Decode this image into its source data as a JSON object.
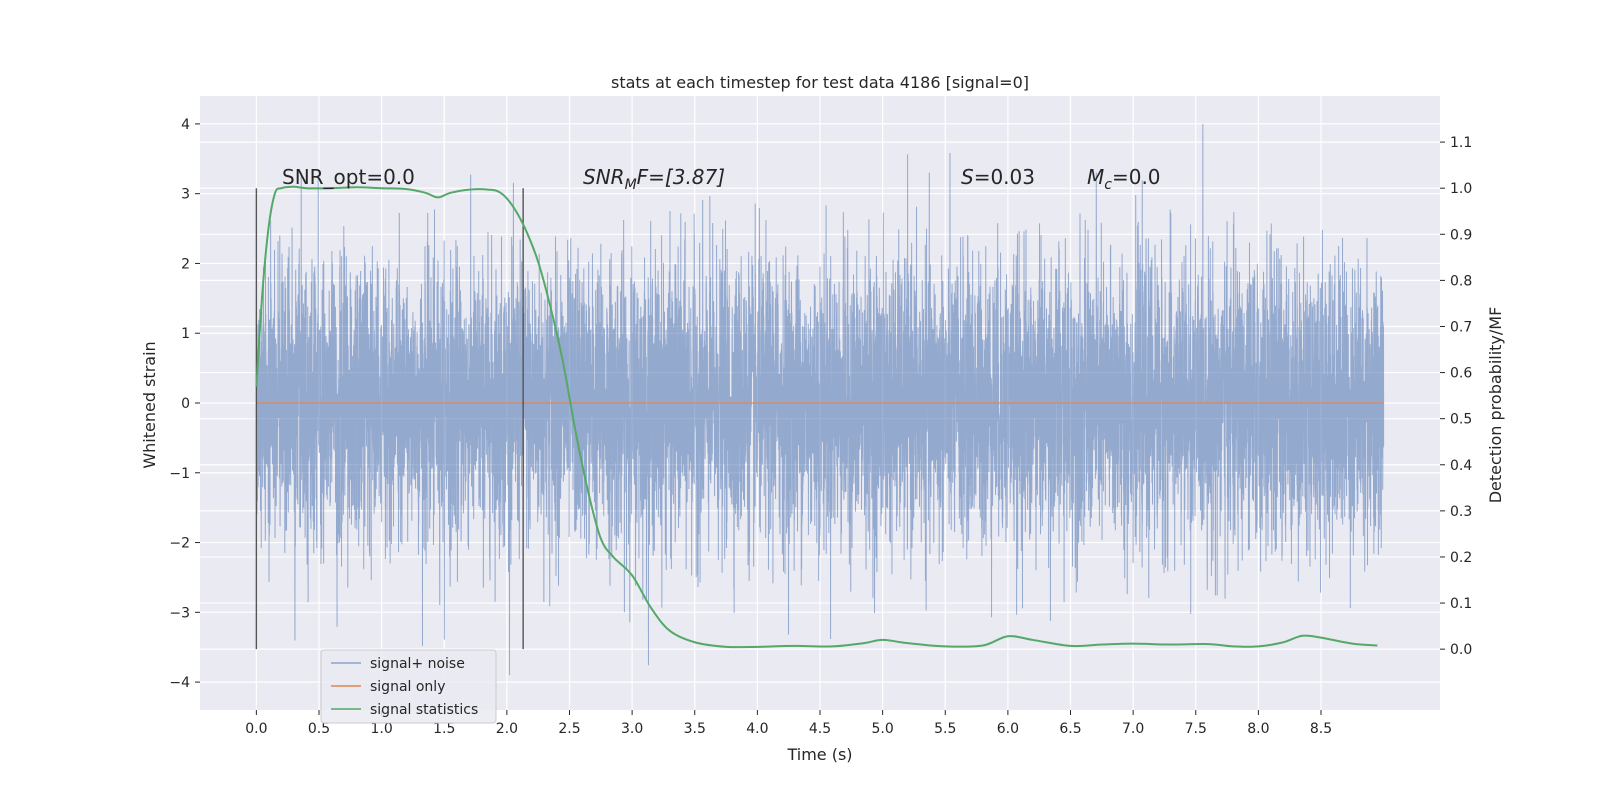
{
  "chart_data": {
    "type": "line",
    "title": "stats at each timestep for test data 4186 [signal=0]",
    "xlabel": "Time (s)",
    "ylabel": "Whitened strain",
    "y2label": "Detection probability/MF",
    "xlim": [
      -0.45,
      9.45
    ],
    "ylim": [
      -4.4,
      4.4
    ],
    "y2lim": [
      -0.132,
      1.2
    ],
    "xticks": [
      "0.0",
      "0.5",
      "1.0",
      "1.5",
      "2.0",
      "2.5",
      "3.0",
      "3.5",
      "4.0",
      "4.5",
      "5.0",
      "5.5",
      "6.0",
      "6.5",
      "7.0",
      "7.5",
      "8.0",
      "8.5"
    ],
    "yticks": [
      "4",
      "3",
      "2",
      "1",
      "0",
      "−1",
      "−2",
      "−3",
      "−4"
    ],
    "y2ticks": [
      "1.1",
      "1.0",
      "0.9",
      "0.8",
      "0.7",
      "0.6",
      "0.5",
      "0.4",
      "0.3",
      "0.2",
      "0.1",
      "0.0"
    ],
    "grid": true,
    "legend_position": "lower-left",
    "series": [
      {
        "name": "signal+ noise",
        "axis": "left",
        "color": "#4c72b0",
        "style": "dense-noise",
        "x_range": [
          0.0,
          9.0
        ],
        "sigma": 1.0,
        "max": 4.0,
        "min": -3.9
      },
      {
        "name": "signal only",
        "axis": "left",
        "color": "#dd8452",
        "x": [
          0.0,
          9.0
        ],
        "values": [
          0.0,
          0.0
        ]
      },
      {
        "name": "signal statistics",
        "axis": "right",
        "color": "#55a868",
        "x": [
          0.0,
          0.05,
          0.1,
          0.15,
          0.2,
          0.3,
          0.4,
          0.6,
          0.8,
          1.0,
          1.2,
          1.35,
          1.45,
          1.55,
          1.7,
          1.85,
          1.95,
          2.05,
          2.15,
          2.25,
          2.35,
          2.45,
          2.55,
          2.65,
          2.75,
          2.85,
          3.0,
          3.15,
          3.3,
          3.5,
          3.75,
          4.0,
          4.3,
          4.6,
          4.85,
          5.0,
          5.2,
          5.5,
          5.8,
          6.0,
          6.2,
          6.5,
          6.75,
          7.0,
          7.3,
          7.6,
          7.8,
          8.0,
          8.2,
          8.35,
          8.5,
          8.75,
          8.95
        ],
        "values": [
          0.57,
          0.78,
          0.92,
          0.99,
          1.0,
          1.003,
          1.0,
          1.0,
          1.002,
          1.0,
          0.998,
          0.99,
          0.98,
          0.99,
          0.997,
          0.997,
          0.99,
          0.96,
          0.91,
          0.84,
          0.74,
          0.62,
          0.47,
          0.34,
          0.24,
          0.2,
          0.16,
          0.09,
          0.04,
          0.015,
          0.005,
          0.005,
          0.007,
          0.006,
          0.013,
          0.02,
          0.013,
          0.006,
          0.008,
          0.028,
          0.02,
          0.007,
          0.01,
          0.012,
          0.01,
          0.011,
          0.006,
          0.006,
          0.015,
          0.029,
          0.025,
          0.012,
          0.008
        ]
      }
    ],
    "vlines": [
      {
        "x": 0.0,
        "y2_range": [
          0.0,
          1.0
        ],
        "color": "#555555"
      },
      {
        "x": 2.13,
        "y2_range": [
          0.0,
          1.0
        ],
        "color": "#555555"
      }
    ],
    "annotations": [
      {
        "key": "snr_opt",
        "text": "SNR_opt=0.0"
      },
      {
        "key": "snr_mf",
        "base": "SNR",
        "sub": "M",
        "after": "F=[3.87]"
      },
      {
        "key": "s",
        "base": "S",
        "after": "=0.03"
      },
      {
        "key": "mc",
        "base": "M",
        "sub": "c",
        "after": "=0.0"
      }
    ]
  }
}
